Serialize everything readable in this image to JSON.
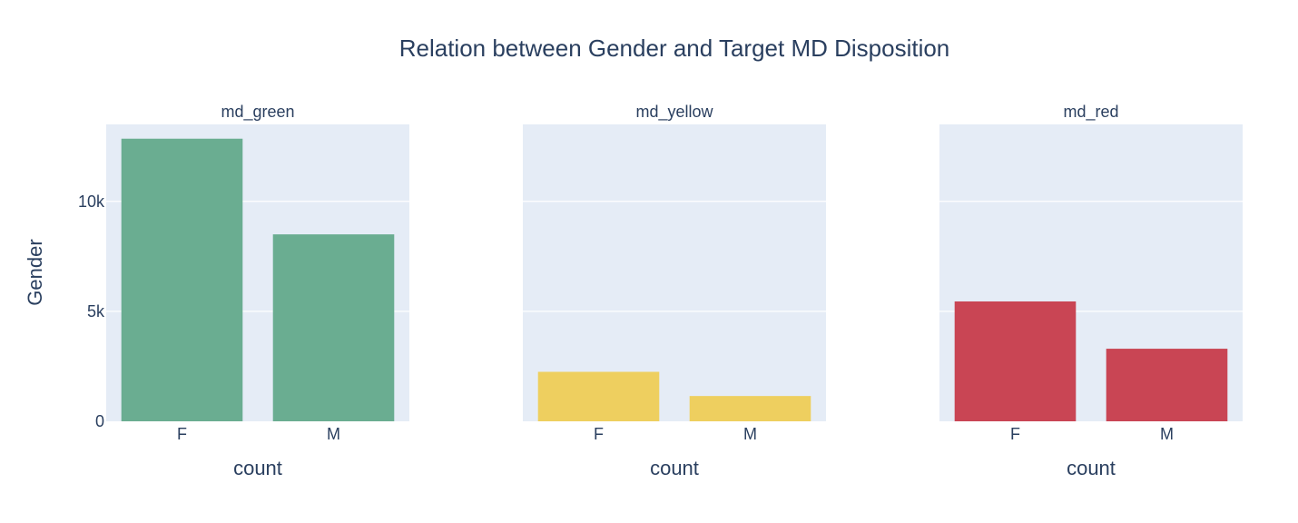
{
  "chart_data": {
    "type": "bar",
    "title": "Relation between Gender and Target MD Disposition",
    "ylabel": "Gender",
    "ylim": [
      0,
      13500
    ],
    "y_ticks": [
      {
        "value": 0,
        "label": "0"
      },
      {
        "value": 5000,
        "label": "5k"
      },
      {
        "value": 10000,
        "label": "10k"
      }
    ],
    "grid": true,
    "panels": [
      {
        "name": "md_green",
        "xlabel": "count",
        "color": "#6aad91",
        "categories": [
          "F",
          "M"
        ],
        "values": [
          12850,
          8500
        ]
      },
      {
        "name": "md_yellow",
        "xlabel": "count",
        "color": "#eecf5f",
        "categories": [
          "F",
          "M"
        ],
        "values": [
          2250,
          1150
        ]
      },
      {
        "name": "md_red",
        "xlabel": "count",
        "color": "#c94554",
        "categories": [
          "F",
          "M"
        ],
        "values": [
          5450,
          3300
        ]
      }
    ]
  }
}
